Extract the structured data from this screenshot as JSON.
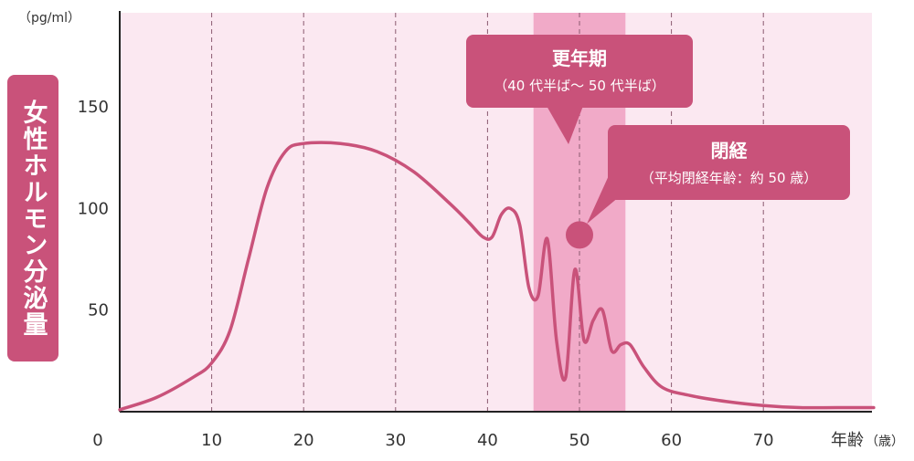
{
  "colors": {
    "background_band": "#fbe8f1",
    "highlight_band": "#f1aac8",
    "curve": "#c9527a",
    "callout": "#c9527a",
    "grid": "#8a5a70"
  },
  "chart_data": {
    "type": "line",
    "title": "",
    "ylabel": "女性ホルモン分泌量",
    "yunit": "（pg/ml）",
    "xlabel": "年齢",
    "xunit": "（歳）",
    "xlim": [
      0,
      82
    ],
    "ylim": [
      0,
      195
    ],
    "x_ticks": [
      "0",
      "10",
      "20",
      "30",
      "40",
      "50",
      "60",
      "70"
    ],
    "x_tick_values": [
      0,
      10,
      20,
      30,
      40,
      50,
      60,
      70
    ],
    "y_ticks": [
      "50",
      "100",
      "150"
    ],
    "y_tick_values": [
      50,
      100,
      150
    ],
    "grid": "vertical dashed",
    "highlight_range": [
      45,
      55
    ],
    "series": [
      {
        "x": [
          0,
          4,
          8,
          10,
          12,
          14,
          16,
          18,
          20,
          24,
          28,
          32,
          36,
          38,
          39.5,
          40.5,
          41.5,
          42.5,
          43.5,
          44.5,
          45.5,
          46.5,
          47.5,
          48.5,
          49.5,
          50.5,
          51.5,
          52.5,
          53.5,
          54.5,
          55.5,
          57,
          59,
          62,
          66,
          70,
          74,
          78,
          82
        ],
        "y": [
          1,
          7,
          17,
          24,
          40,
          75,
          110,
          128,
          132,
          132,
          128,
          118,
          102,
          93,
          86,
          86,
          97,
          100,
          92,
          61,
          57,
          85,
          35,
          17,
          70,
          35,
          45,
          50,
          30,
          33,
          33,
          22,
          12,
          8,
          5,
          3,
          2,
          2,
          2
        ]
      }
    ],
    "annotations": [
      {
        "title": "更年期",
        "subtitle": "（40 代半ば～ 50 代半ば）"
      },
      {
        "title": "閉経",
        "subtitle": "（平均閉経年齢：約 50 歳）",
        "marker_x": 50,
        "marker_y": 87
      }
    ]
  }
}
